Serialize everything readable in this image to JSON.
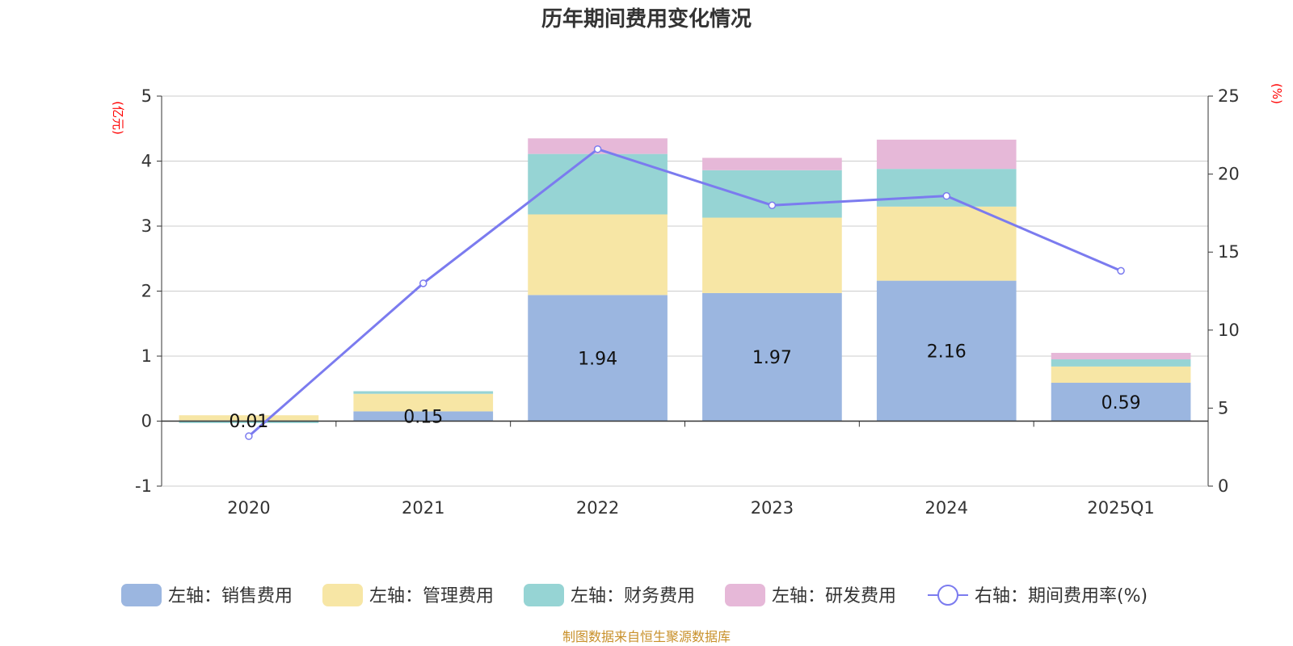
{
  "chart_data": {
    "type": "bar",
    "title": "历年期间费用变化情况",
    "categories": [
      "2020",
      "2021",
      "2022",
      "2023",
      "2024",
      "2025Q1"
    ],
    "left_axis": {
      "unit_label": "(亿元)",
      "ylim": [
        -1,
        5
      ],
      "ticks": [
        -1,
        0,
        1,
        2,
        3,
        4,
        5
      ]
    },
    "right_axis": {
      "unit_label": "(%)",
      "ylim": [
        0,
        25
      ],
      "ticks": [
        0,
        5,
        10,
        15,
        20,
        25
      ]
    },
    "series": [
      {
        "name": "左轴：销售费用",
        "axis": "left",
        "kind": "bar",
        "color": "#9bb6e0",
        "values": [
          0.01,
          0.15,
          1.94,
          1.97,
          2.16,
          0.59
        ],
        "labels": [
          "0.01",
          "0.15",
          "1.94",
          "1.97",
          "2.16",
          "0.59"
        ]
      },
      {
        "name": "左轴：管理费用",
        "axis": "left",
        "kind": "bar",
        "color": "#f7e6a5",
        "values": [
          0.08,
          0.27,
          1.24,
          1.16,
          1.14,
          0.25
        ]
      },
      {
        "name": "左轴：财务费用",
        "axis": "left",
        "kind": "bar",
        "color": "#96d4d4",
        "values": [
          -0.03,
          0.04,
          0.93,
          0.73,
          0.58,
          0.11
        ]
      },
      {
        "name": "左轴：研发费用",
        "axis": "left",
        "kind": "bar",
        "color": "#e6b8d8",
        "values": [
          0.0,
          0.0,
          0.24,
          0.19,
          0.45,
          0.1
        ]
      },
      {
        "name": "右轴：期间费用率(%)",
        "axis": "right",
        "kind": "line",
        "color": "#7b7bef",
        "values": [
          3.2,
          13.0,
          21.6,
          18.0,
          18.6,
          13.8
        ]
      }
    ],
    "grid": true,
    "legend_position": "bottom"
  },
  "source_note": "制图数据来自恒生聚源数据库"
}
